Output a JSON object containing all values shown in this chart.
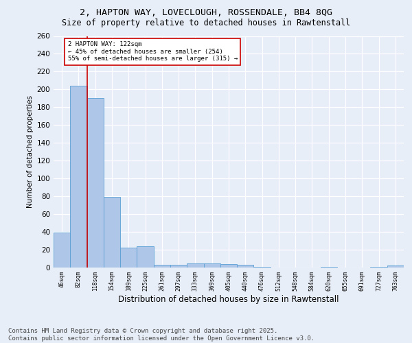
{
  "title_line1": "2, HAPTON WAY, LOVECLOUGH, ROSSENDALE, BB4 8QG",
  "title_line2": "Size of property relative to detached houses in Rawtenstall",
  "xlabel": "Distribution of detached houses by size in Rawtenstall",
  "ylabel": "Number of detached properties",
  "categories": [
    "46sqm",
    "82sqm",
    "118sqm",
    "154sqm",
    "189sqm",
    "225sqm",
    "261sqm",
    "297sqm",
    "333sqm",
    "369sqm",
    "405sqm",
    "440sqm",
    "476sqm",
    "512sqm",
    "548sqm",
    "584sqm",
    "620sqm",
    "655sqm",
    "691sqm",
    "727sqm",
    "763sqm"
  ],
  "values": [
    39,
    204,
    190,
    79,
    22,
    24,
    3,
    3,
    5,
    5,
    4,
    3,
    1,
    0,
    0,
    0,
    1,
    0,
    0,
    1,
    2
  ],
  "bar_color": "#aec6e8",
  "bar_edge_color": "#5a9fd4",
  "vline_x_idx": 1.5,
  "vline_color": "#cc0000",
  "annotation_text": "2 HAPTON WAY: 122sqm\n← 45% of detached houses are smaller (254)\n55% of semi-detached houses are larger (315) →",
  "annotation_box_color": "#ffffff",
  "annotation_box_edge_color": "#cc0000",
  "annotation_fontsize": 6.5,
  "ylim": [
    0,
    260
  ],
  "yticks": [
    0,
    20,
    40,
    60,
    80,
    100,
    120,
    140,
    160,
    180,
    200,
    220,
    240,
    260
  ],
  "background_color": "#e8eef8",
  "grid_color": "#ffffff",
  "footer_line1": "Contains HM Land Registry data © Crown copyright and database right 2025.",
  "footer_line2": "Contains public sector information licensed under the Open Government Licence v3.0.",
  "footer_fontsize": 6.5,
  "title_fontsize1": 9.5,
  "title_fontsize2": 8.5,
  "ylabel_fontsize": 7.5,
  "xlabel_fontsize": 8.5
}
